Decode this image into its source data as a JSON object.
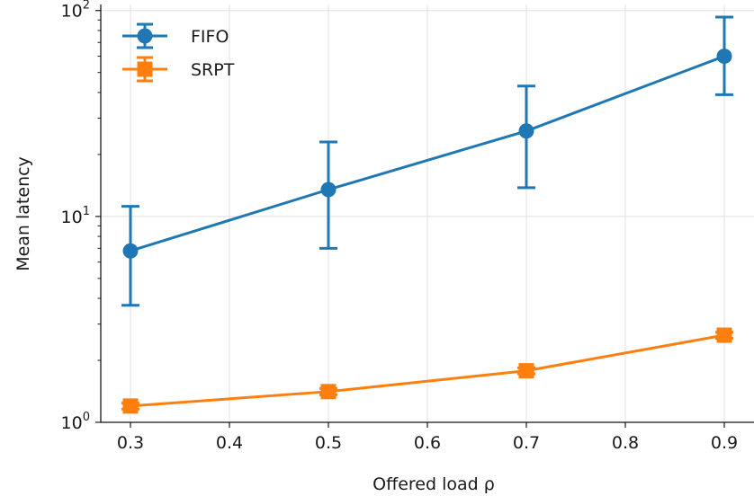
{
  "chart_data": {
    "type": "line",
    "title": "",
    "xlabel": "Offered load ρ",
    "ylabel": "Mean latency",
    "x": [
      0.3,
      0.5,
      0.7,
      0.9
    ],
    "xlim": [
      0.27,
      0.93
    ],
    "ylim": [
      1.0,
      107.0
    ],
    "yscale": "log",
    "grid": true,
    "legend_position": "upper-left",
    "x_ticks": [
      "0.3",
      "0.4",
      "0.5",
      "0.6",
      "0.7",
      "0.8",
      "0.9"
    ],
    "y_ticks": [
      {
        "base": "10",
        "exp": "0"
      },
      {
        "base": "10",
        "exp": "1"
      },
      {
        "base": "10",
        "exp": "2"
      }
    ],
    "series": [
      {
        "name": "FIFO",
        "marker": "circle",
        "color": "#1f77b4",
        "values": [
          6.8,
          13.5,
          26.0,
          60.0
        ],
        "err_low": [
          3.7,
          7.0,
          13.8,
          39.0
        ],
        "err_high": [
          11.2,
          23.0,
          43.0,
          93.0
        ]
      },
      {
        "name": "SRPT",
        "marker": "square",
        "color": "#ff7f0e",
        "values": [
          1.2,
          1.41,
          1.78,
          2.65
        ],
        "err_low": [
          1.16,
          1.36,
          1.72,
          2.56
        ],
        "err_high": [
          1.24,
          1.46,
          1.84,
          2.74
        ]
      }
    ]
  }
}
